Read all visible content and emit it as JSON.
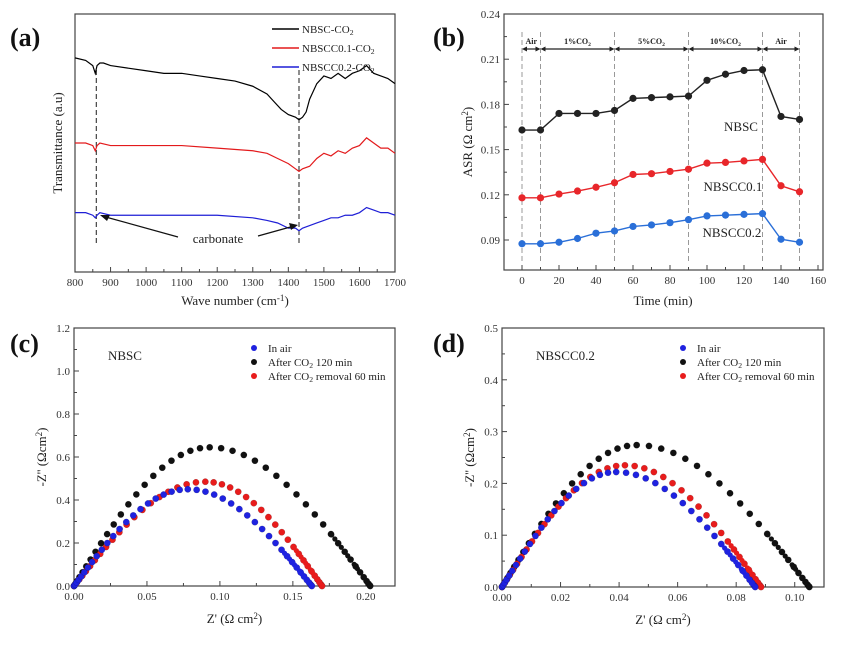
{
  "chart_data": [
    {
      "id": "a",
      "panel_label": "(a)",
      "type": "line",
      "title": "",
      "xlabel": "Wave number (cm⁻¹)",
      "ylabel": "Transmittance (a.u)",
      "xlim": [
        800,
        1700
      ],
      "xticks": [
        "800",
        "900",
        "1000",
        "1100",
        "1200",
        "1300",
        "1400",
        "1500",
        "1600",
        "1700"
      ],
      "yticks": [],
      "grid": false,
      "legend_position": "top-right",
      "annotation": "carbonate",
      "reference_lines_x": [
        860,
        1430
      ],
      "series": [
        {
          "name": "NBSC-CO₂",
          "color": "#000000",
          "x": [
            800,
            830,
            850,
            857,
            862,
            870,
            880,
            900,
            950,
            1000,
            1050,
            1100,
            1150,
            1200,
            1250,
            1300,
            1340,
            1360,
            1380,
            1400,
            1420,
            1430,
            1440,
            1450,
            1460,
            1480,
            1500,
            1520,
            1540,
            1560,
            1580,
            1600,
            1620,
            1640,
            1660,
            1680,
            1700
          ],
          "y": [
            0.83,
            0.82,
            0.8,
            0.77,
            0.8,
            0.81,
            0.81,
            0.8,
            0.79,
            0.78,
            0.77,
            0.77,
            0.76,
            0.75,
            0.74,
            0.72,
            0.69,
            0.66,
            0.63,
            0.61,
            0.6,
            0.59,
            0.6,
            0.62,
            0.67,
            0.73,
            0.76,
            0.75,
            0.77,
            0.75,
            0.77,
            0.78,
            0.8,
            0.77,
            0.76,
            0.75,
            0.73
          ]
        },
        {
          "name": "NBSCC0.1-CO₂",
          "color": "#e31a1c",
          "x": [
            800,
            830,
            850,
            857,
            862,
            870,
            900,
            1000,
            1100,
            1200,
            1300,
            1340,
            1370,
            1400,
            1420,
            1430,
            1440,
            1460,
            1480,
            1500,
            1520,
            1540,
            1560,
            1580,
            1600,
            1620,
            1640,
            1660,
            1680,
            1700
          ],
          "y": [
            0.5,
            0.5,
            0.49,
            0.47,
            0.49,
            0.5,
            0.49,
            0.49,
            0.49,
            0.48,
            0.47,
            0.46,
            0.44,
            0.42,
            0.4,
            0.39,
            0.4,
            0.41,
            0.44,
            0.46,
            0.45,
            0.47,
            0.46,
            0.48,
            0.49,
            0.52,
            0.5,
            0.48,
            0.48,
            0.46
          ]
        },
        {
          "name": "NBSCC0.2-CO₂",
          "color": "#1f1fd6",
          "x": [
            800,
            830,
            850,
            857,
            862,
            870,
            900,
            1000,
            1100,
            1200,
            1300,
            1340,
            1370,
            1400,
            1420,
            1430,
            1440,
            1460,
            1480,
            1500,
            1520,
            1540,
            1560,
            1580,
            1600,
            1620,
            1640,
            1660,
            1680,
            1700
          ],
          "y": [
            0.23,
            0.23,
            0.22,
            0.21,
            0.22,
            0.23,
            0.22,
            0.22,
            0.22,
            0.22,
            0.21,
            0.2,
            0.19,
            0.17,
            0.17,
            0.16,
            0.17,
            0.18,
            0.19,
            0.2,
            0.21,
            0.21,
            0.22,
            0.22,
            0.23,
            0.25,
            0.24,
            0.23,
            0.23,
            0.22
          ]
        }
      ]
    },
    {
      "id": "b",
      "panel_label": "(b)",
      "type": "line",
      "title": "",
      "xlabel": "Time (min)",
      "ylabel": "ASR (Ω cm²)",
      "xlim": [
        -10,
        160
      ],
      "ylim": [
        0.07,
        0.24
      ],
      "xticks": [
        "0",
        "20",
        "40",
        "60",
        "80",
        "100",
        "120",
        "140",
        "160"
      ],
      "yticks": [
        "0.09",
        "0.12",
        "0.15",
        "0.18",
        "0.21",
        "0.24"
      ],
      "grid": false,
      "phase_boundaries": [
        0,
        10,
        50,
        90,
        130,
        150
      ],
      "phases": [
        "Air",
        "1%CO₂",
        "5%CO₂",
        "10%CO₂",
        "Air"
      ],
      "x": [
        0,
        10,
        20,
        30,
        40,
        50,
        60,
        70,
        80,
        90,
        100,
        110,
        120,
        130,
        140,
        150
      ],
      "series": [
        {
          "name": "NBSC",
          "color": "#222222",
          "values": [
            0.163,
            0.163,
            0.174,
            0.174,
            0.174,
            0.176,
            0.184,
            0.1845,
            0.185,
            0.1855,
            0.196,
            0.2,
            0.2025,
            0.203,
            0.172,
            0.17
          ]
        },
        {
          "name": "NBSCC0.1",
          "color": "#e8262a",
          "values": [
            0.118,
            0.118,
            0.1205,
            0.1225,
            0.125,
            0.128,
            0.1335,
            0.134,
            0.1355,
            0.137,
            0.141,
            0.1415,
            0.1425,
            0.1435,
            0.126,
            0.122
          ]
        },
        {
          "name": "NBSCC0.2",
          "color": "#2a6fd8",
          "values": [
            0.0875,
            0.0875,
            0.0885,
            0.091,
            0.0945,
            0.096,
            0.099,
            0.1,
            0.1015,
            0.1035,
            0.106,
            0.1065,
            0.107,
            0.1075,
            0.0905,
            0.0885
          ]
        }
      ]
    },
    {
      "id": "c",
      "panel_label": "(c)",
      "type": "scatter",
      "title": "NBSC",
      "xlabel": "Z' (Ω cm²)",
      "ylabel": "-Z'' (Ωcm²)",
      "xlim": [
        0,
        0.22
      ],
      "ylim": [
        0,
        1.2
      ],
      "xticks": [
        "0.00",
        "0.05",
        "0.10",
        "0.15",
        "0.20"
      ],
      "yticks": [
        "0.0",
        "0.2",
        "0.4",
        "0.6",
        "0.8",
        "1.0",
        "1.2"
      ],
      "grid": false,
      "legend_position": "top-right",
      "series": [
        {
          "name": "In air",
          "color": "#1f22e0",
          "r_start": 0.0,
          "r_end": 0.163,
          "peak": 0.45,
          "peak_x": 0.078
        },
        {
          "name": "After CO₂ 120 min",
          "color": "#111111",
          "r_start": 0.0,
          "r_end": 0.203,
          "peak": 0.645,
          "peak_x": 0.093
        },
        {
          "name": "After CO₂ removal 60 min",
          "color": "#e81c1c",
          "r_start": 0.0,
          "r_end": 0.17,
          "peak": 0.485,
          "peak_x": 0.09
        }
      ]
    },
    {
      "id": "d",
      "panel_label": "(d)",
      "type": "scatter",
      "title": "NBSCC0.2",
      "xlabel": "Z' (Ω cm²)",
      "ylabel": "-Z'' (Ωcm²)",
      "xlim": [
        0,
        0.11
      ],
      "ylim": [
        0,
        0.5
      ],
      "xticks": [
        "0.00",
        "0.02",
        "0.04",
        "0.06",
        "0.08",
        "0.10"
      ],
      "yticks": [
        "0.0",
        "0.1",
        "0.2",
        "0.3",
        "0.4",
        "0.5"
      ],
      "grid": false,
      "legend_position": "top-right",
      "series": [
        {
          "name": "In air",
          "color": "#1f22e0",
          "r_start": 0.0,
          "r_end": 0.0865,
          "peak": 0.222,
          "peak_x": 0.039
        },
        {
          "name": "After CO₂ 120 min",
          "color": "#111111",
          "r_start": 0.0,
          "r_end": 0.105,
          "peak": 0.274,
          "peak_x": 0.046
        },
        {
          "name": "After CO₂ removal 60 min",
          "color": "#e81c1c",
          "r_start": 0.0,
          "r_end": 0.0885,
          "peak": 0.235,
          "peak_x": 0.042
        }
      ]
    }
  ]
}
